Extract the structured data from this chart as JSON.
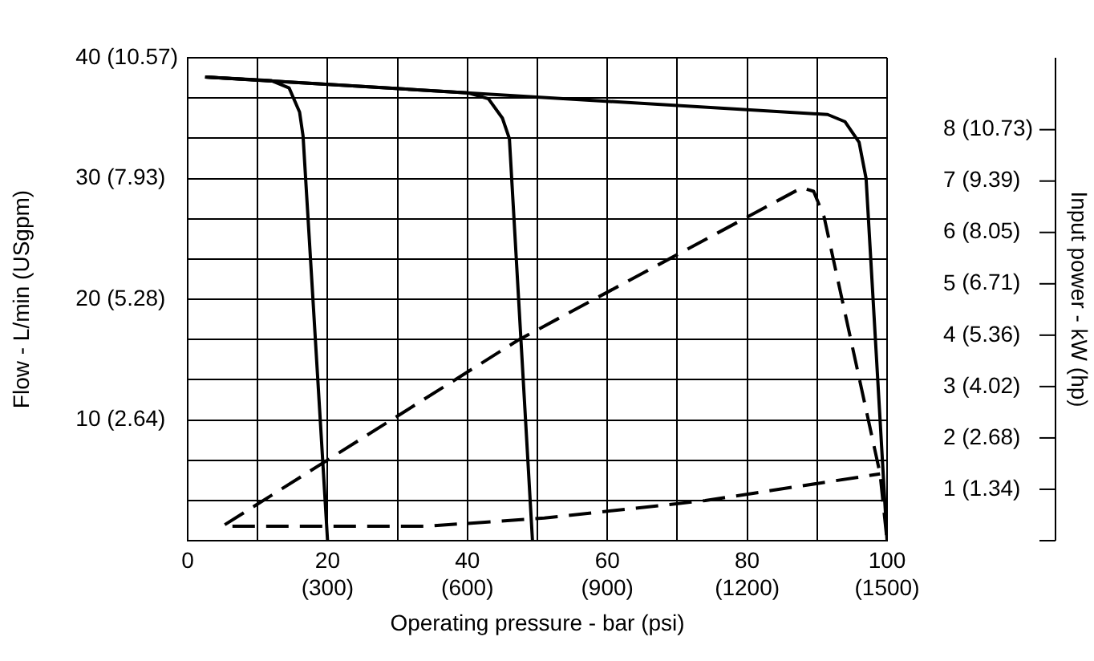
{
  "chart_data": {
    "type": "line",
    "xlabel": "Operating pressure - bar (psi)",
    "ylabel": "Flow - L/min (USgpm)",
    "y2label": "Input power - kW (hp)",
    "xlim": [
      0,
      100
    ],
    "ylim": [
      0,
      40
    ],
    "y2lim": [
      0,
      9.4
    ],
    "x2lim": [
      0,
      1500
    ],
    "y3lim": [
      0,
      12.6
    ],
    "annotations": [
      "(2.64)",
      "(5.28)",
      "(7.93)",
      "(10.57)"
    ],
    "xticks": [
      0,
      {
        "value": 10,
        "label": null
      },
      20,
      {
        "value": 30,
        "label": null
      },
      40,
      {
        "value": 50,
        "label": null
      },
      60,
      {
        "value": 70,
        "label": null
      },
      80,
      {
        "value": 90,
        "label": null
      },
      100
    ],
    "x2ticks": [
      {
        "value": 300,
        "label": "(300)"
      },
      {
        "value": 600,
        "label": "(600)"
      },
      {
        "value": 900,
        "label": "(900)"
      },
      {
        "value": 1200,
        "label": "(1200)"
      },
      {
        "value": 1500,
        "label": "(1500)"
      }
    ],
    "yticks": [
      {
        "value": 3.33,
        "label": null
      },
      {
        "value": 6.67,
        "label": null
      },
      10,
      {
        "value": 13.33,
        "label": null
      },
      {
        "value": 16.67,
        "label": null
      },
      20,
      {
        "value": 23.33,
        "label": null
      },
      {
        "value": 26.67,
        "label": null
      },
      30,
      {
        "value": 33.33,
        "label": null
      },
      {
        "value": 36.67,
        "label": null
      },
      40
    ],
    "y2ticks": [
      1,
      2,
      3,
      4,
      5,
      6,
      7,
      8
    ],
    "y3ticks": [
      {
        "value": 1.34,
        "label": "(1.34)"
      },
      {
        "value": 2.68,
        "label": "(2.68)"
      },
      {
        "value": 4.02,
        "label": "(4.02)"
      },
      {
        "value": 5.36,
        "label": "(5.36)"
      },
      {
        "value": 6.71,
        "label": "(6.71)"
      },
      {
        "value": 8.05,
        "label": "(8.05)"
      },
      {
        "value": 9.39,
        "label": "(9.39)"
      },
      {
        "value": 10.73,
        "label": "(10.73)"
      }
    ],
    "grid": true,
    "legend": false,
    "marker": "none",
    "series": [
      {
        "color": "#000000",
        "line_style": "solid",
        "x": [
          2.5,
          12,
          14.5,
          16,
          16.5,
          20
        ],
        "values": [
          38.4,
          38.1,
          37.5,
          35.5,
          33.5,
          0
        ]
      },
      {
        "color": "#000000",
        "line_style": "solid",
        "x": [
          2.5,
          40,
          43,
          45,
          46,
          49.3
        ],
        "values": [
          38.4,
          37.1,
          36.6,
          35,
          33.3,
          0
        ]
      },
      {
        "color": "#000000",
        "line_style": "solid",
        "x": [
          2.5,
          91.5,
          94,
          96,
          97,
          100
        ],
        "values": [
          38.4,
          35.3,
          34.7,
          33,
          30,
          0
        ]
      },
      {
        "color": "#000000",
        "line_style": "dashed",
        "axis": "y2",
        "x": [
          5.3,
          47.2,
          87.8,
          89.5,
          91,
          99,
          100
        ],
        "values": [
          0.31,
          3.9,
          6.87,
          6.8,
          6.3,
          1.3,
          0
        ]
      },
      {
        "color": "#000000",
        "line_style": "dashed",
        "axis": "y2",
        "x": [
          6.4,
          34,
          51,
          74,
          99
        ],
        "values": [
          0.28,
          0.28,
          0.44,
          0.78,
          1.3
        ]
      }
    ]
  }
}
